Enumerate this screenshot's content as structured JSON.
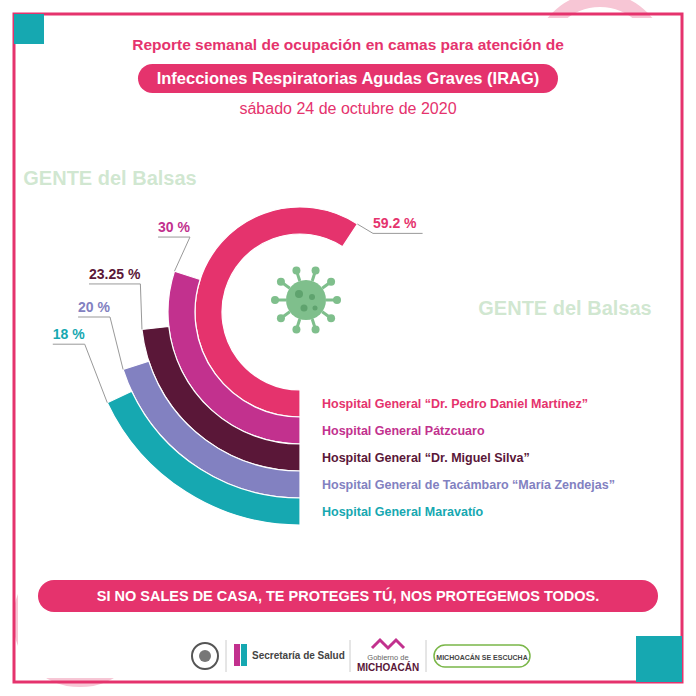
{
  "header": {
    "title": "Reporte semanal de ocupación en camas para atención de",
    "subtitle": "Infecciones Respiratorias Agudas Graves (IRAG)",
    "date": "sábado 24 de octubre de 2020"
  },
  "chart_data": {
    "type": "radial_bar",
    "categories": [
      "Hospital General “Dr. Pedro Daniel Martínez”",
      "Hospital General Pátzcuaro",
      "Hospital General “Dr. Miguel Silva”",
      "Hospital General de Tacámbaro “María Zendejas”",
      "Hospital General Maravatío"
    ],
    "values": [
      59.2,
      30,
      23.25,
      20,
      18
    ],
    "value_labels": [
      "59.2 %",
      "30 %",
      "23.25 %",
      "20 %",
      "18 %"
    ],
    "colors": [
      "#e5336d",
      "#c2318e",
      "#5a1738",
      "#8281c1",
      "#16a8b1"
    ],
    "ylim": [
      0,
      100
    ],
    "data_labels": true,
    "tick_labels": false
  },
  "footer": {
    "slogan": "SI NO SALES DE CASA, TE PROTEGES TÚ, NOS PROTEGEMOS TODOS.",
    "logos": [
      "Secretaría de Salud",
      "Gobierno de",
      "MICHOACÁN",
      "MICHOACÁN SE ESCUCHA"
    ]
  },
  "watermark": "GENTE del Balsas"
}
